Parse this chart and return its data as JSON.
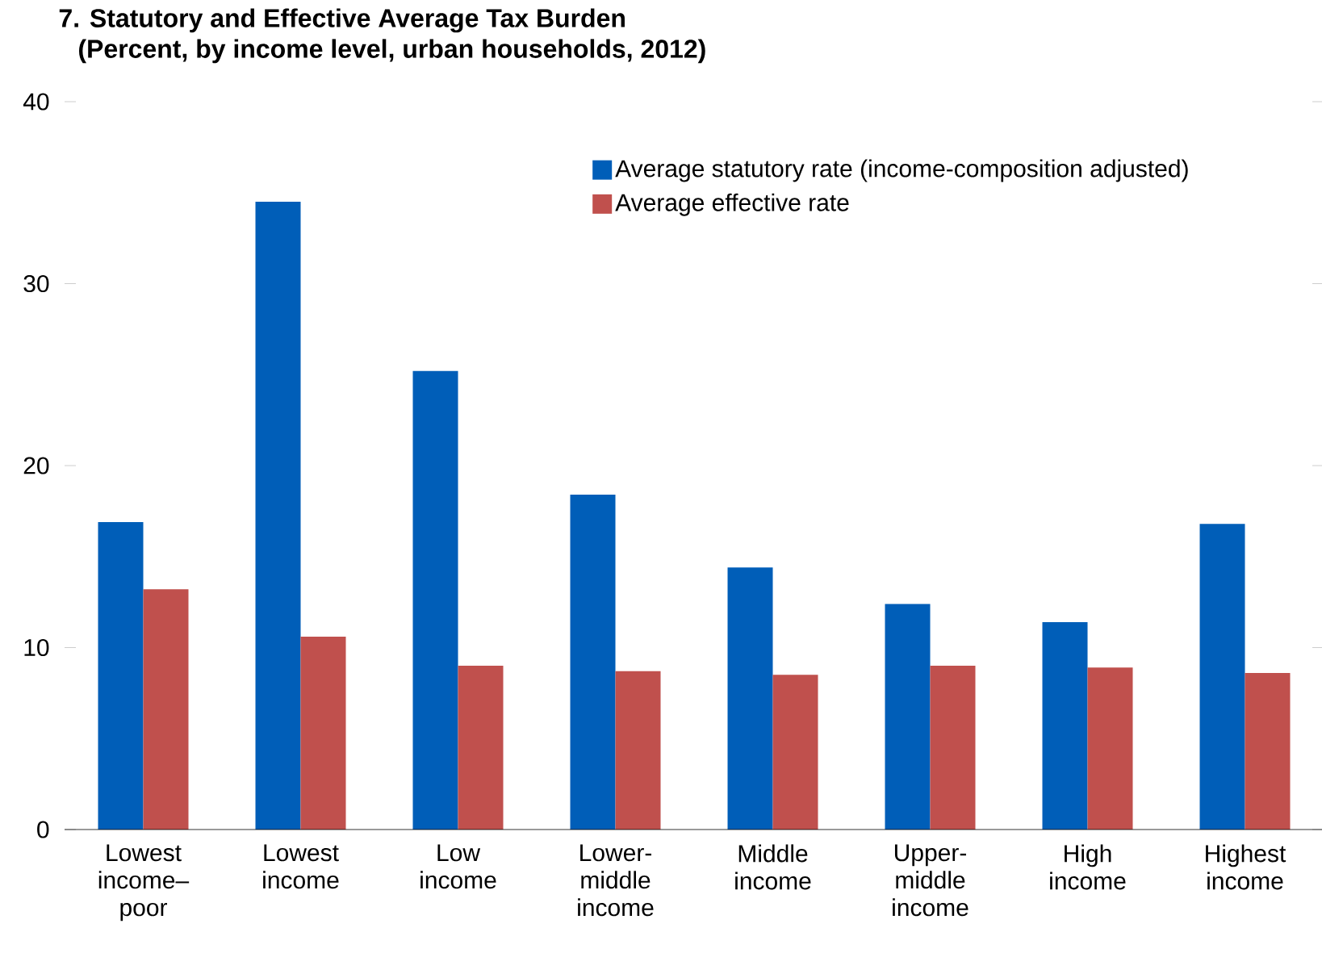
{
  "chart_data": {
    "type": "bar",
    "title": "7. Statutory and Effective Average Tax Burden",
    "subtitle": "(Percent, by income level, urban households, 2012)",
    "categories": [
      "Lowest income–poor",
      "Lowest income",
      "Low income",
      "Lower-middle income",
      "Middle income",
      "Upper-middle income",
      "High income",
      "Highest income"
    ],
    "series": [
      {
        "name": "Average statutory rate (income-composition adjusted)",
        "color": "#005eb8",
        "values": [
          16.9,
          34.5,
          25.2,
          18.4,
          14.4,
          12.4,
          11.4,
          16.8
        ]
      },
      {
        "name": "Average effective rate",
        "color": "#c0504d",
        "values": [
          13.2,
          10.6,
          9.0,
          8.7,
          8.5,
          9.0,
          8.9,
          8.6
        ]
      }
    ],
    "ylim": [
      0,
      40
    ],
    "yticks": [
      0,
      10,
      20,
      30,
      40
    ],
    "legend": "top right"
  }
}
